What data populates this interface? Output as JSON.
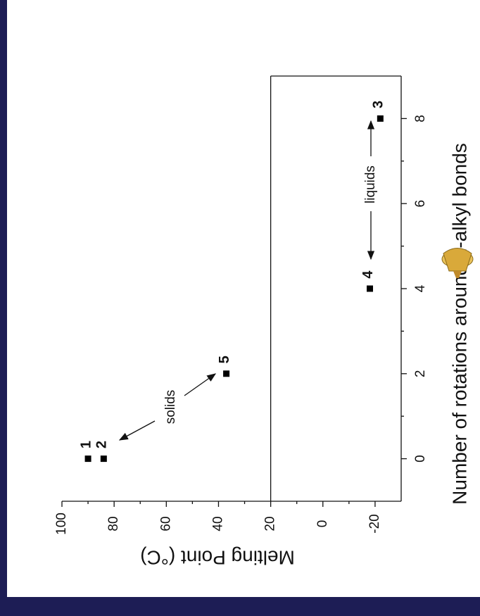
{
  "chart_data": {
    "type": "scatter",
    "x_label": "Number of rotations around n-alkyl bonds",
    "y_label": "Melting Point (°C)",
    "x": [
      0,
      0,
      8,
      4,
      2
    ],
    "values": [
      90,
      84,
      -22,
      -18,
      37
    ],
    "point_labels": [
      "1",
      "2",
      "3",
      "4",
      "5"
    ],
    "color": "#000000",
    "xlim": [
      -1,
      9
    ],
    "xticks": [
      0,
      2,
      4,
      6,
      8
    ],
    "ylim": [
      -30,
      100
    ],
    "yticks": [
      -20,
      0,
      20,
      40,
      60,
      80,
      100
    ],
    "reference_line": 20,
    "annotations": [
      "solids",
      "liquids"
    ]
  }
}
